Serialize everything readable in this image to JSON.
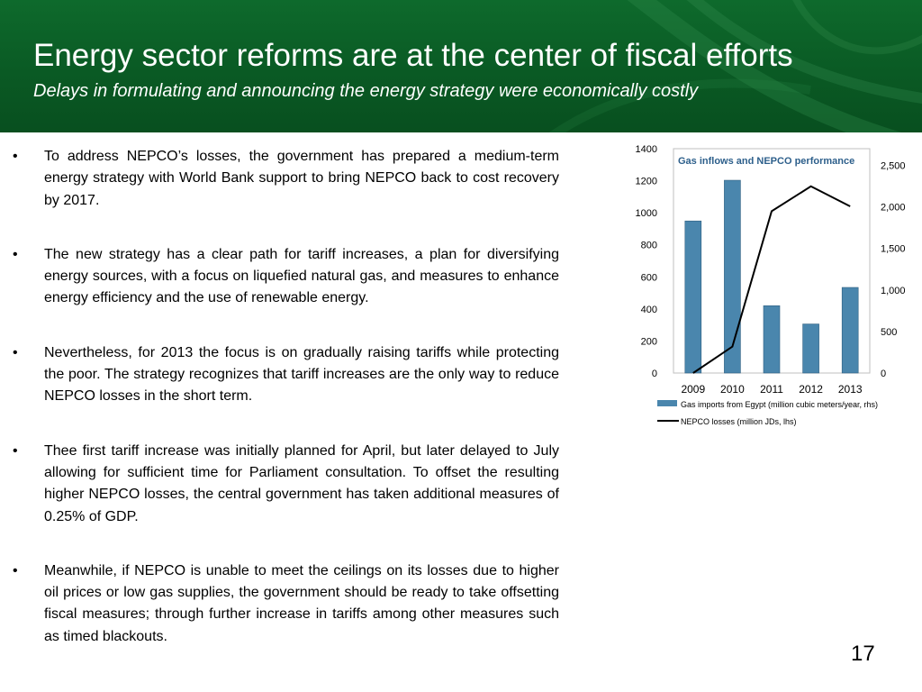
{
  "slide": {
    "title": "Energy sector reforms are at the center of fiscal efforts",
    "subtitle": "Delays in formulating and announcing the energy strategy were economically costly",
    "page_number": "17",
    "accent_color": "#0a5a24",
    "bullet_glyph": "•",
    "bullets": [
      "To address NEPCO’s losses, the government has prepared a medium-term energy strategy with World Bank support to bring NEPCO back to cost recovery by 2017.",
      "The new strategy has a clear path for tariff increases, a plan for diversifying energy sources, with a focus on liquefied natural gas, and measures to enhance energy efficiency and the use of renewable energy.",
      "Nevertheless, for 2013 the focus is on gradually raising tariffs while protecting the poor. The strategy recognizes that tariff increases are the only way to reduce NEPCO losses in the short term.",
      "Thee first tariff increase was initially planned for April, but later delayed to July allowing for sufficient time for Parliament consultation. To offset the resulting higher NEPCO losses, the central government has taken additional measures of 0.25% of GDP.",
      "Meanwhile, if NEPCO is unable to meet the ceilings on its losses due to higher oil prices or low gas supplies, the government should be ready to take offsetting fiscal measures; through further increase in tariffs among other measures such as timed blackouts."
    ]
  },
  "chart_data": {
    "type": "bar",
    "title": "Gas inflows and NEPCO performance",
    "categories": [
      "2009",
      "2010",
      "2011",
      "2012",
      "2013"
    ],
    "left_axis": {
      "ticks": [
        "0",
        "200",
        "400",
        "600",
        "800",
        "1000",
        "1200",
        "1400"
      ],
      "ylim": [
        0,
        1400
      ]
    },
    "right_axis": {
      "ticks": [
        "0",
        "500",
        "1,000",
        "1,500",
        "2,000",
        "2,500"
      ],
      "ylim": [
        0,
        2700
      ]
    },
    "series": [
      {
        "name": "Gas imports from Egypt (million cubic meters/year, rhs)",
        "type": "bar",
        "axis": "right",
        "color": "#4a86ad",
        "values": [
          1830,
          2320,
          810,
          590,
          1030
        ]
      },
      {
        "name": "NEPCO losses (million JDs, lhs)",
        "type": "line",
        "axis": "left",
        "color": "#000000",
        "values": [
          0,
          165,
          1010,
          1165,
          1040
        ]
      }
    ],
    "grid": false,
    "legend_position": "bottom"
  }
}
